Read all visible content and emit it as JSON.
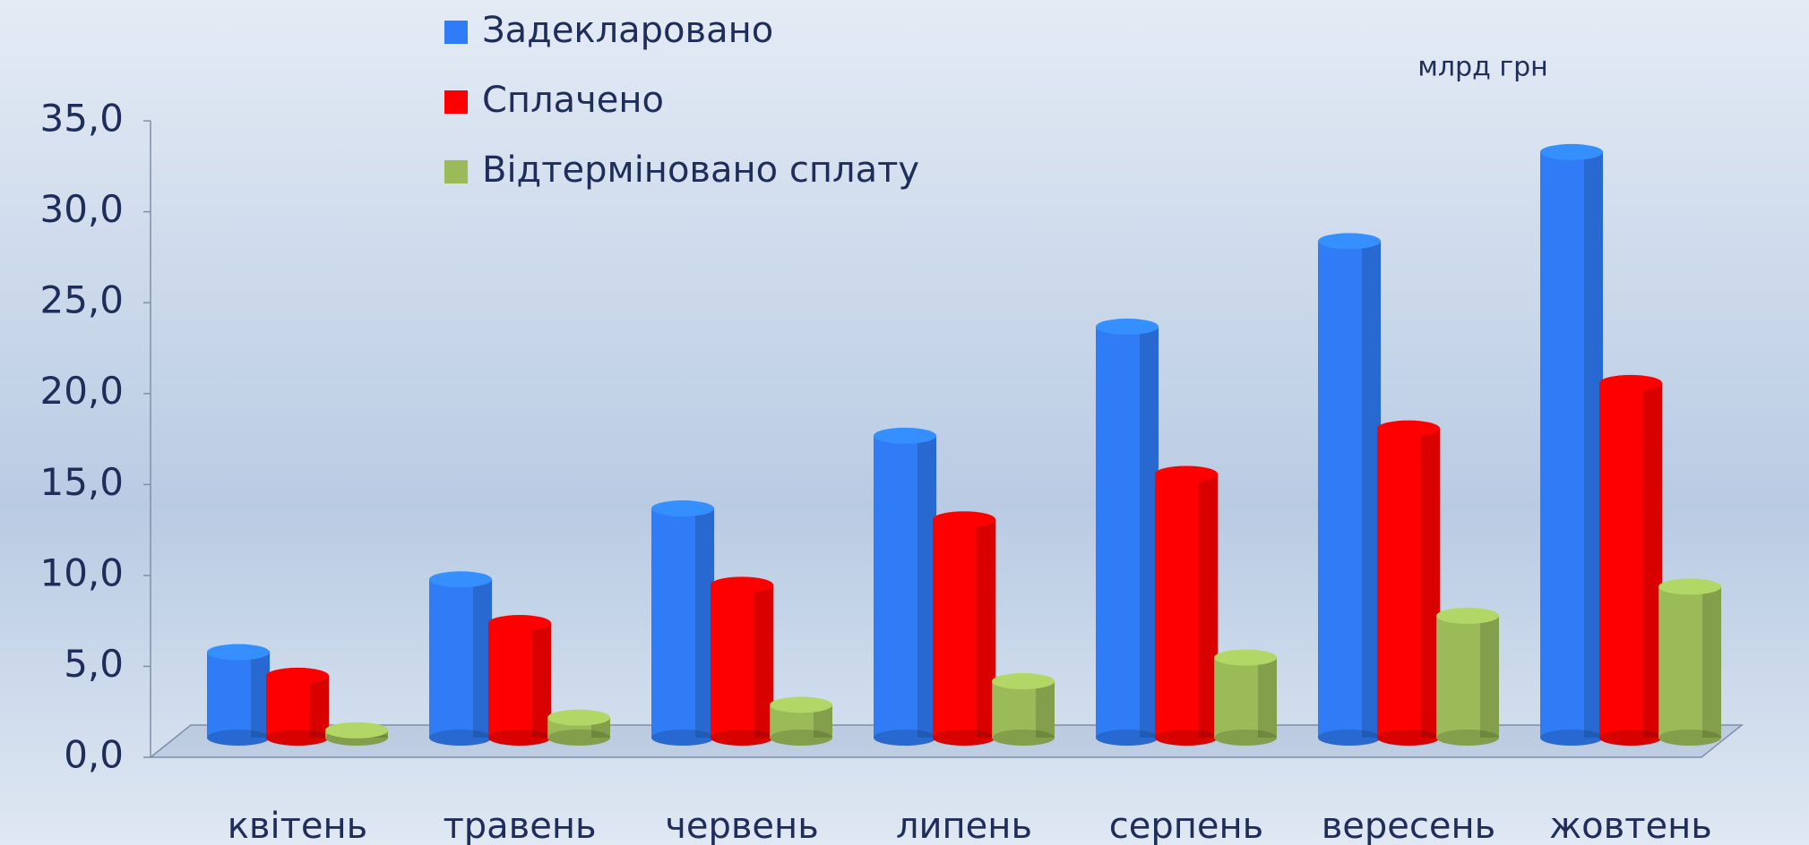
{
  "chart_data": {
    "type": "bar3d",
    "unit_label": "млрд грн",
    "categories": [
      "квітень",
      "травень",
      "червень",
      "липень",
      "серпень",
      "вересень",
      "жовтень"
    ],
    "series": [
      {
        "name": "Задекларовано",
        "color": "#2f7cf6",
        "values": [
          4.7,
          8.7,
          12.6,
          16.6,
          22.6,
          27.3,
          32.2
        ]
      },
      {
        "name": "Сплачено",
        "color": "#ff0000",
        "values": [
          3.4,
          6.3,
          8.4,
          12.0,
          14.5,
          17.0,
          19.5
        ]
      },
      {
        "name": "Відтерміновано сплату",
        "color": "#9bbb59",
        "values": [
          0.4,
          1.1,
          1.8,
          3.1,
          4.4,
          6.7,
          8.3
        ]
      }
    ],
    "ylim": [
      0,
      35
    ],
    "yticks": [
      {
        "value": 0,
        "label": "0,0"
      },
      {
        "value": 5,
        "label": "5,0"
      },
      {
        "value": 10,
        "label": "10,0"
      },
      {
        "value": 15,
        "label": "15,0"
      },
      {
        "value": 20,
        "label": "20,0"
      },
      {
        "value": 25,
        "label": "25,0"
      },
      {
        "value": 30,
        "label": "30,0"
      },
      {
        "value": 35,
        "label": "35,0"
      }
    ],
    "legend": "top"
  }
}
